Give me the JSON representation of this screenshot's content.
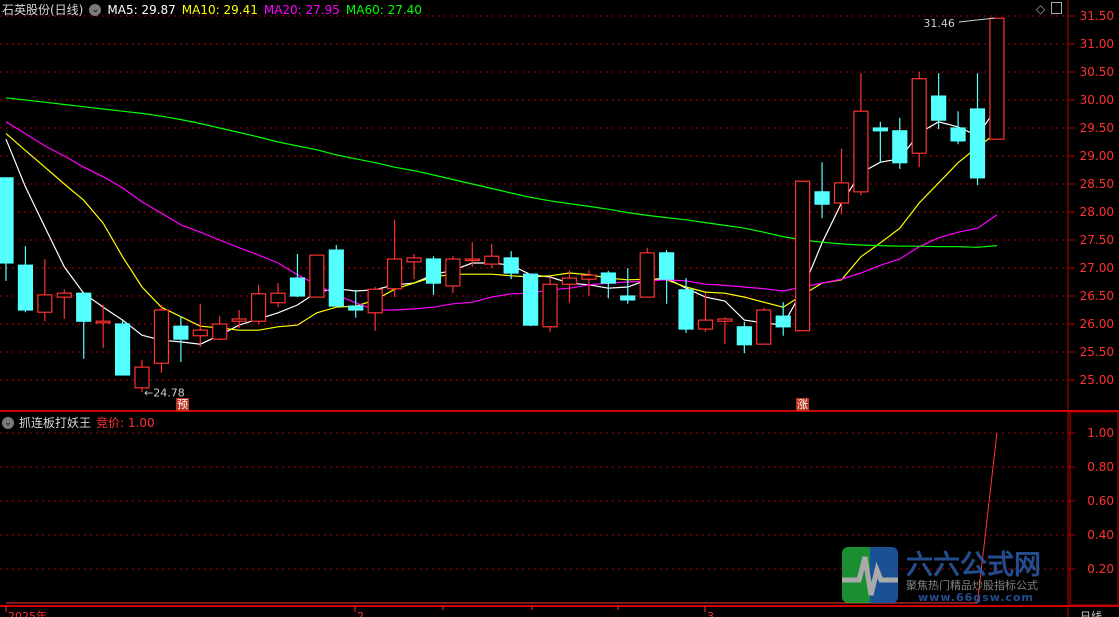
{
  "header": {
    "title": "石英股份(日线)",
    "ma5_label": "MA5: 29.87",
    "ma10_label": "MA10: 29.41",
    "ma20_label": "MA20: 27.95",
    "ma60_label": "MA60: 27.40",
    "dropdown_icon": "chevron-down-icon"
  },
  "indicator": {
    "name": "抓连板打妖王",
    "value_label": "竞价: 1.00"
  },
  "toolbar_icons": [
    "diamond-icon",
    "square-icon"
  ],
  "markers": {
    "low_label": "24.78",
    "high_label": "31.46",
    "yu_tag": "预",
    "zhang_tag": "涨"
  },
  "bottom_axis": {
    "labels": [
      "2025年",
      "2",
      "3"
    ],
    "period": "日线"
  },
  "watermark": {
    "name": "六六公式网",
    "slogan": "聚焦热门精品炒股指标公式",
    "url": "www.66gsw.com"
  },
  "colors": {
    "up": "#ff3232",
    "down": "#54ffff",
    "ma5": "#ffffff",
    "ma10": "#ffff00",
    "ma20": "#ff00ff",
    "ma60": "#00ff00",
    "grid": "#b00000",
    "axis_text": "#ff3232"
  },
  "chart_data": [
    {
      "type": "candlestick",
      "title": "石英股份(日线)",
      "ylim": [
        24.6,
        31.6
      ],
      "yticks": [
        "31.50",
        "31.00",
        "30.50",
        "30.00",
        "29.50",
        "29.00",
        "28.50",
        "28.00",
        "27.50",
        "27.00",
        "26.50",
        "26.00",
        "25.50",
        "25.00"
      ],
      "grid": true,
      "ohlc": [
        [
          28.61,
          28.61,
          26.77,
          27.09
        ],
        [
          27.05,
          27.39,
          26.21,
          26.25
        ],
        [
          26.21,
          27.16,
          26.05,
          26.52
        ],
        [
          26.48,
          26.62,
          26.09,
          26.55
        ],
        [
          26.55,
          26.55,
          25.38,
          26.05
        ],
        [
          26.02,
          26.34,
          25.57,
          26.05
        ],
        [
          26.0,
          26.07,
          25.09,
          25.09
        ],
        [
          24.86,
          25.36,
          24.78,
          25.23
        ],
        [
          25.3,
          26.34,
          25.13,
          26.25
        ],
        [
          25.96,
          26.14,
          25.32,
          25.73
        ],
        [
          25.79,
          26.36,
          25.59,
          25.89
        ],
        [
          25.73,
          26.14,
          25.71,
          26.0
        ],
        [
          26.05,
          26.25,
          25.93,
          26.09
        ],
        [
          26.05,
          26.7,
          26.0,
          26.54
        ],
        [
          26.38,
          26.73,
          26.3,
          26.55
        ],
        [
          26.82,
          27.25,
          26.48,
          26.5
        ],
        [
          26.48,
          27.23,
          26.48,
          27.23
        ],
        [
          27.32,
          27.41,
          26.32,
          26.32
        ],
        [
          26.32,
          26.61,
          26.11,
          26.25
        ],
        [
          26.2,
          26.66,
          25.88,
          26.62
        ],
        [
          26.63,
          27.86,
          26.48,
          27.16
        ],
        [
          27.11,
          27.25,
          26.8,
          27.18
        ],
        [
          27.16,
          27.21,
          26.52,
          26.73
        ],
        [
          26.68,
          27.21,
          26.55,
          27.16
        ],
        [
          27.16,
          27.46,
          27.02,
          27.16
        ],
        [
          27.07,
          27.43,
          27.0,
          27.21
        ],
        [
          27.18,
          27.3,
          26.8,
          26.91
        ],
        [
          26.89,
          26.89,
          25.96,
          25.98
        ],
        [
          25.95,
          26.84,
          25.86,
          26.71
        ],
        [
          26.71,
          26.96,
          26.38,
          26.82
        ],
        [
          26.8,
          26.96,
          26.5,
          26.87
        ],
        [
          26.91,
          26.95,
          26.46,
          26.73
        ],
        [
          26.5,
          27.0,
          26.36,
          26.43
        ],
        [
          26.48,
          27.36,
          26.48,
          27.27
        ],
        [
          27.27,
          27.32,
          26.36,
          26.8
        ],
        [
          26.61,
          26.82,
          25.84,
          25.91
        ],
        [
          25.91,
          26.55,
          25.86,
          26.07
        ],
        [
          26.05,
          26.12,
          25.64,
          26.09
        ],
        [
          25.95,
          26.04,
          25.48,
          25.63
        ],
        [
          25.64,
          26.29,
          25.64,
          26.25
        ],
        [
          26.14,
          26.39,
          25.79,
          25.95
        ],
        [
          25.88,
          28.55,
          25.88,
          28.55
        ],
        [
          28.36,
          28.89,
          27.89,
          28.14
        ],
        [
          28.16,
          29.13,
          27.96,
          28.52
        ],
        [
          28.36,
          30.48,
          28.3,
          29.8
        ],
        [
          29.5,
          29.61,
          28.88,
          29.45
        ],
        [
          29.45,
          29.68,
          28.77,
          28.88
        ],
        [
          29.05,
          30.5,
          28.8,
          30.38
        ],
        [
          30.07,
          30.48,
          29.48,
          29.64
        ],
        [
          29.5,
          29.8,
          29.21,
          29.27
        ],
        [
          29.84,
          30.48,
          28.48,
          28.61
        ],
        [
          29.3,
          31.46,
          29.3,
          31.46
        ]
      ],
      "series": [
        {
          "name": "MA5",
          "values": [
            29.3,
            28.45,
            27.73,
            27.02,
            26.55,
            26.3,
            26.07,
            25.8,
            25.71,
            25.68,
            25.64,
            25.8,
            25.98,
            26.09,
            26.2,
            26.34,
            26.57,
            26.63,
            26.59,
            26.61,
            26.7,
            26.73,
            26.88,
            26.96,
            27.09,
            27.09,
            27.05,
            26.88,
            26.84,
            26.73,
            26.7,
            26.64,
            26.66,
            26.79,
            26.82,
            26.64,
            26.48,
            26.41,
            26.07,
            26.02,
            25.98,
            26.61,
            27.45,
            28.16,
            28.7,
            28.89,
            28.95,
            29.41,
            29.61,
            29.52,
            29.36,
            29.87
          ]
        },
        {
          "name": "MA10",
          "values": [
            29.4,
            29.1,
            28.8,
            28.5,
            28.21,
            27.8,
            27.2,
            26.66,
            26.3,
            26.13,
            25.96,
            25.93,
            25.89,
            25.89,
            25.95,
            25.98,
            26.2,
            26.3,
            26.32,
            26.43,
            26.62,
            26.73,
            26.84,
            26.89,
            26.89,
            26.89,
            26.86,
            26.84,
            26.86,
            26.91,
            26.88,
            26.82,
            26.79,
            26.8,
            26.79,
            26.66,
            26.57,
            26.55,
            26.48,
            26.39,
            26.3,
            26.52,
            26.73,
            26.79,
            27.2,
            27.45,
            27.71,
            28.16,
            28.52,
            28.88,
            29.16,
            29.41
          ]
        },
        {
          "name": "MA20",
          "values": [
            29.61,
            29.4,
            29.18,
            29.0,
            28.8,
            28.63,
            28.43,
            28.18,
            27.98,
            27.77,
            27.64,
            27.5,
            27.36,
            27.23,
            27.09,
            26.88,
            26.7,
            26.52,
            26.38,
            26.25,
            26.25,
            26.27,
            26.3,
            26.36,
            26.39,
            26.48,
            26.54,
            26.55,
            26.61,
            26.64,
            26.7,
            26.73,
            26.75,
            26.77,
            26.79,
            26.77,
            26.71,
            26.69,
            26.66,
            26.63,
            26.59,
            26.66,
            26.73,
            26.8,
            26.91,
            27.05,
            27.16,
            27.38,
            27.54,
            27.64,
            27.71,
            27.95
          ]
        },
        {
          "name": "MA60",
          "values": [
            30.04,
            30.0,
            29.96,
            29.92,
            29.88,
            29.84,
            29.8,
            29.76,
            29.71,
            29.65,
            29.58,
            29.5,
            29.42,
            29.34,
            29.25,
            29.18,
            29.11,
            29.02,
            28.95,
            28.88,
            28.8,
            28.74,
            28.66,
            28.58,
            28.5,
            28.42,
            28.34,
            28.26,
            28.2,
            28.15,
            28.1,
            28.05,
            27.99,
            27.94,
            27.9,
            27.86,
            27.81,
            27.76,
            27.71,
            27.64,
            27.56,
            27.5,
            27.46,
            27.43,
            27.41,
            27.4,
            27.39,
            27.39,
            27.38,
            27.38,
            27.37,
            27.4
          ]
        }
      ]
    },
    {
      "type": "line",
      "title": "抓连板打妖王",
      "ylim": [
        0,
        1.1
      ],
      "yticks": [
        "1.00",
        "0.80",
        "0.60",
        "0.40",
        "0.20"
      ],
      "grid": true,
      "series": [
        {
          "name": "竞价",
          "values": [
            0,
            0,
            0,
            0,
            0,
            0,
            0,
            0,
            0,
            0,
            0,
            0,
            0,
            0,
            0,
            0,
            0,
            0,
            0,
            0,
            0,
            0,
            0,
            0,
            0,
            0,
            0,
            0,
            0,
            0,
            0,
            0,
            0,
            0,
            0,
            0,
            0,
            0,
            0,
            0,
            0,
            0,
            0,
            0,
            0,
            0,
            0,
            0,
            0,
            0,
            0,
            1.0
          ]
        }
      ]
    }
  ]
}
